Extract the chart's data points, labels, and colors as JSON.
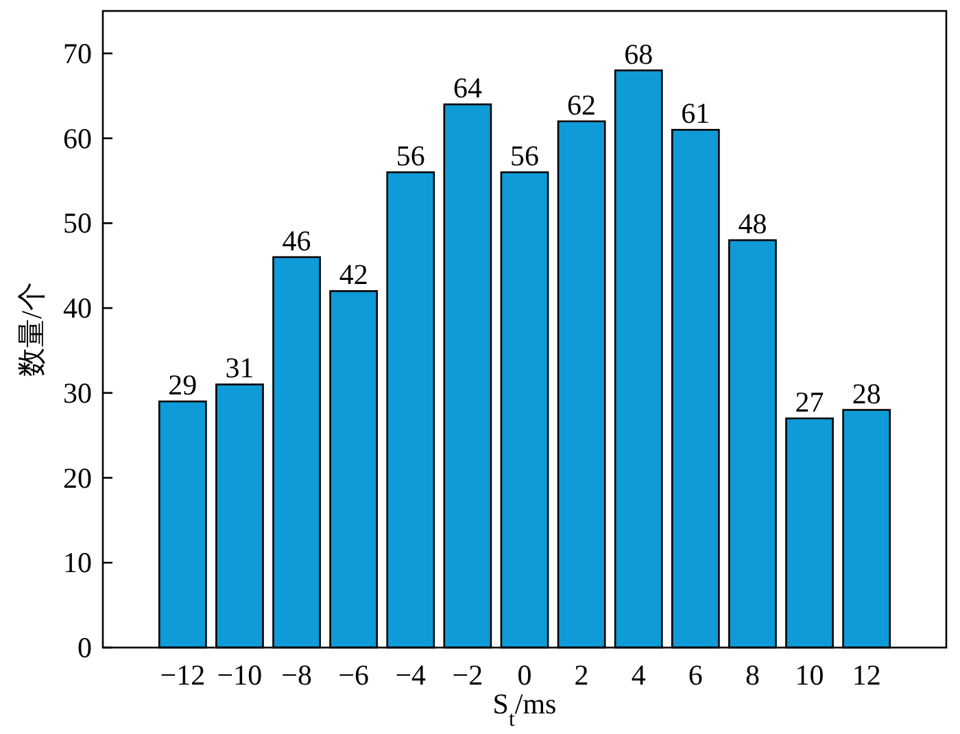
{
  "chart_data": {
    "type": "bar",
    "xlabel": "S$_{t}$/ms",
    "ylabel": "数量/个",
    "categories": [
      "−12",
      "−10",
      "−8",
      "−6",
      "−4",
      "−2",
      "0",
      "2",
      "4",
      "6",
      "8",
      "10",
      "12"
    ],
    "values": [
      29,
      31,
      46,
      42,
      56,
      64,
      56,
      62,
      68,
      61,
      48,
      27,
      28
    ],
    "color": "#0f9bd7",
    "ylim": [
      0,
      75
    ],
    "yticks": [
      0,
      10,
      20,
      30,
      40,
      50,
      60,
      70
    ],
    "data_labels": true
  }
}
